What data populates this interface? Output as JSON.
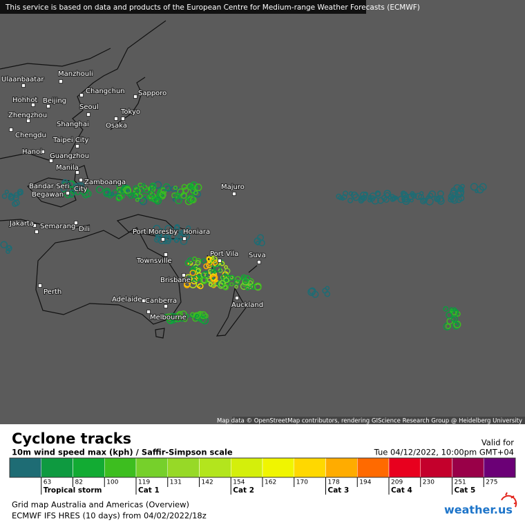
{
  "banner": "This service is based on data and products of the European Centre for Medium-range Weather Forecasts (ECMWF)",
  "attribution": "Map data © OpenStreetMap contributors, rendering GIScience Research Group @ Heidelberg University",
  "cities": [
    [
      "Manzhouli"
    ],
    [
      "Ulaanbaatar"
    ],
    [
      "Changchun"
    ],
    [
      "Sapporo"
    ],
    [
      "Hohhot"
    ],
    [
      "Beijing"
    ],
    [
      "Seoul"
    ],
    [
      "Tokyo"
    ],
    [
      "Zhengzhou"
    ],
    [
      "Shanghai"
    ],
    [
      "Osaka"
    ],
    [
      "Chengdu"
    ],
    [
      "Taipei City"
    ],
    [
      "Hanoi"
    ],
    [
      "Guangzhou"
    ],
    [
      "Manila"
    ],
    [
      "Zamboanga"
    ],
    [
      "Bandar Seri",
      "Begawan",
      "City"
    ],
    [
      "Majuro"
    ],
    [
      "Jakarta"
    ],
    [
      "Semarang"
    ],
    [
      "Dili"
    ],
    [
      "Port Moresby"
    ],
    [
      "Honiara"
    ],
    [
      "Port Vila"
    ],
    [
      "Suva"
    ],
    [
      "Townsville"
    ],
    [
      "Brisbane"
    ],
    [
      "Perth"
    ],
    [
      "Auckland"
    ],
    [
      "Adelaide"
    ],
    [
      "Canberra"
    ],
    [
      "Melbourne"
    ]
  ],
  "legend": {
    "title": "Cyclone tracks",
    "subtitle": "10m wind speed max (kph) / Saffir-Simpson scale",
    "valid_label": "Valid for",
    "valid_time": "Tue 04/12/2022, 10:00pm GMT+04",
    "colors": [
      "#1e6c74",
      "#0e9a40",
      "#12ab33",
      "#3dbe1f",
      "#76d02b",
      "#97d927",
      "#b3e51d",
      "#d4ef0b",
      "#f0f500",
      "#ffd800",
      "#ffac00",
      "#ff6a00",
      "#e8001e",
      "#c4002c",
      "#990048",
      "#6b0076"
    ],
    "ticks": [
      63,
      82,
      100,
      119,
      131,
      142,
      154,
      162,
      170,
      178,
      194,
      209,
      230,
      251,
      275
    ],
    "categories": [
      "Tropical storm",
      null,
      null,
      "Cat 1",
      null,
      null,
      "Cat 2",
      null,
      null,
      "Cat 3",
      null,
      "Cat 4",
      null,
      "Cat 5",
      null
    ]
  },
  "footer": {
    "line1": "Grid map Australia and Americas (Overview)",
    "line2": "ECMWF IFS HRES (10 days) from 04/02/2022/18z",
    "logo": "weather.us"
  }
}
